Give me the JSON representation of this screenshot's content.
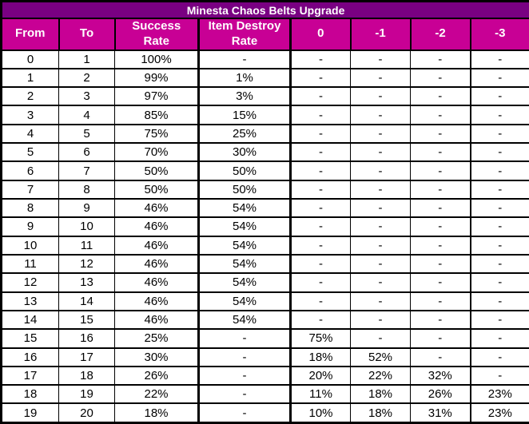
{
  "colors": {
    "title_bg": "#790082",
    "header_bg": "#C80095",
    "header_text": "#FFFFFF",
    "body_bg": "#FFFFFF",
    "body_text": "#000000",
    "border": "#000000"
  },
  "chart_data": {
    "type": "table",
    "title": "Minesta Chaos Belts Upgrade",
    "columns": [
      "From",
      "To",
      "Success\nRate",
      "Item Destroy\nRate",
      "0",
      "-1",
      "-2",
      "-3"
    ],
    "rows": [
      [
        "0",
        "1",
        "100%",
        "-",
        "-",
        "-",
        "-",
        "-"
      ],
      [
        "1",
        "2",
        "99%",
        "1%",
        "-",
        "-",
        "-",
        "-"
      ],
      [
        "2",
        "3",
        "97%",
        "3%",
        "-",
        "-",
        "-",
        "-"
      ],
      [
        "3",
        "4",
        "85%",
        "15%",
        "-",
        "-",
        "-",
        "-"
      ],
      [
        "4",
        "5",
        "75%",
        "25%",
        "-",
        "-",
        "-",
        "-"
      ],
      [
        "5",
        "6",
        "70%",
        "30%",
        "-",
        "-",
        "-",
        "-"
      ],
      [
        "6",
        "7",
        "50%",
        "50%",
        "-",
        "-",
        "-",
        "-"
      ],
      [
        "7",
        "8",
        "50%",
        "50%",
        "-",
        "-",
        "-",
        "-"
      ],
      [
        "8",
        "9",
        "46%",
        "54%",
        "-",
        "-",
        "-",
        "-"
      ],
      [
        "9",
        "10",
        "46%",
        "54%",
        "-",
        "-",
        "-",
        "-"
      ],
      [
        "10",
        "11",
        "46%",
        "54%",
        "-",
        "-",
        "-",
        "-"
      ],
      [
        "11",
        "12",
        "46%",
        "54%",
        "-",
        "-",
        "-",
        "-"
      ],
      [
        "12",
        "13",
        "46%",
        "54%",
        "-",
        "-",
        "-",
        "-"
      ],
      [
        "13",
        "14",
        "46%",
        "54%",
        "-",
        "-",
        "-",
        "-"
      ],
      [
        "14",
        "15",
        "46%",
        "54%",
        "-",
        "-",
        "-",
        "-"
      ],
      [
        "15",
        "16",
        "25%",
        "-",
        "75%",
        "-",
        "-",
        "-"
      ],
      [
        "16",
        "17",
        "30%",
        "-",
        "18%",
        "52%",
        "-",
        "-"
      ],
      [
        "17",
        "18",
        "26%",
        "-",
        "20%",
        "22%",
        "32%",
        "-"
      ],
      [
        "18",
        "19",
        "22%",
        "-",
        "11%",
        "18%",
        "26%",
        "23%"
      ],
      [
        "19",
        "20",
        "18%",
        "-",
        "10%",
        "18%",
        "31%",
        "23%"
      ]
    ]
  }
}
